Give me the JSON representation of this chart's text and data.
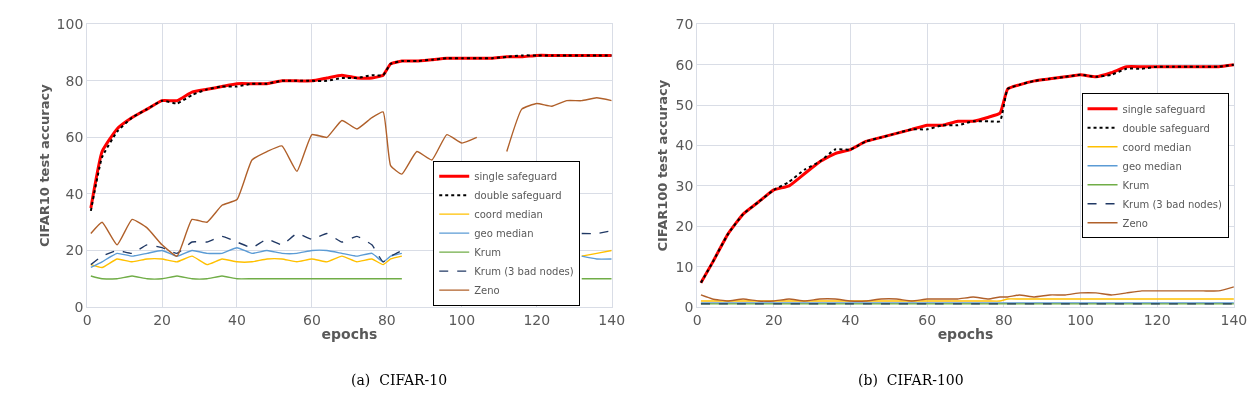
{
  "chart_data": [
    {
      "type": "line",
      "xlabel": "epochs",
      "ylabel": "CIFAR10 test accuracy",
      "annotations": [
        "(a)  CIFAR-10"
      ],
      "xlim": [
        0,
        140
      ],
      "ylim": [
        0,
        100
      ],
      "xticks": [
        0,
        20,
        40,
        60,
        80,
        100,
        120,
        140
      ],
      "yticks": [
        0,
        20,
        40,
        60,
        80,
        100
      ],
      "grid": true,
      "legend": "bottom right",
      "marker": "none",
      "x": [
        1,
        4,
        8,
        12,
        16,
        20,
        24,
        28,
        32,
        36,
        40,
        44,
        48,
        52,
        56,
        60,
        64,
        68,
        72,
        76,
        79,
        81,
        84,
        88,
        92,
        96,
        100,
        104,
        108,
        112,
        116,
        120,
        124,
        128,
        132,
        136,
        140
      ],
      "series": [
        {
          "name": "single safeguard",
          "color": "#ff0000",
          "line_style": "solid",
          "values": [
            35,
            55,
            63,
            67,
            70,
            73,
            73,
            76,
            77,
            78,
            79,
            79,
            79,
            80,
            80,
            80,
            81,
            82,
            81,
            81,
            82,
            86,
            87,
            87,
            87.5,
            88,
            88,
            88,
            88,
            88.5,
            88.5,
            89,
            89,
            89,
            89,
            89,
            89
          ]
        },
        {
          "name": "double safeguard",
          "color": "#000000",
          "line_style": "dotted",
          "values": [
            34,
            53,
            62,
            67,
            70,
            73,
            72,
            75,
            77,
            78,
            78,
            79,
            79,
            80,
            80,
            80,
            80,
            81,
            81,
            82,
            82,
            86,
            87,
            87,
            87.5,
            88,
            88,
            88,
            88,
            88.5,
            89,
            89,
            89,
            89,
            89,
            89,
            89
          ]
        },
        {
          "name": "coord median",
          "color": "#ffc000",
          "line_style": "solid",
          "values": [
            15,
            14,
            17,
            16,
            17,
            17,
            16,
            18,
            15,
            17,
            16,
            16,
            17,
            17,
            16,
            17,
            16,
            18,
            16,
            17,
            15,
            17,
            18,
            null,
            null,
            null,
            null,
            null,
            null,
            null,
            null,
            null,
            null,
            null,
            18,
            19,
            20
          ]
        },
        {
          "name": "geo median",
          "color": "#5b9bd5",
          "line_style": "solid",
          "values": [
            14,
            16,
            19,
            18,
            19,
            20,
            18,
            20,
            19,
            19,
            21,
            19,
            20,
            19,
            19,
            20,
            20,
            19,
            18,
            19,
            16,
            18,
            19,
            null,
            null,
            null,
            null,
            null,
            null,
            null,
            null,
            null,
            null,
            null,
            18,
            17,
            17
          ]
        },
        {
          "name": "Krum",
          "color": "#70ad47",
          "line_style": "solid",
          "values": [
            11,
            10,
            10,
            11,
            10,
            10,
            11,
            10,
            10,
            11,
            10,
            10,
            10,
            10,
            10,
            10,
            10,
            10,
            10,
            10,
            10,
            10,
            10,
            null,
            null,
            null,
            null,
            null,
            null,
            null,
            null,
            null,
            null,
            null,
            10,
            10,
            10
          ]
        },
        {
          "name": "Krum (3 bad nodes)",
          "color": "#203864",
          "line_style": "dashed",
          "values": [
            15,
            18,
            20,
            19,
            22,
            21,
            19,
            23,
            23,
            25,
            23,
            21,
            24,
            22,
            26,
            24,
            26,
            23,
            25,
            22,
            16,
            18,
            20,
            null,
            null,
            null,
            null,
            null,
            null,
            null,
            null,
            null,
            null,
            null,
            26,
            26,
            27
          ]
        },
        {
          "name": "Zeno",
          "color": "#b0602a",
          "line_style": "solid",
          "values": [
            26,
            30,
            22,
            31,
            28,
            22,
            18,
            31,
            30,
            36,
            38,
            52,
            55,
            57,
            48,
            61,
            60,
            66,
            63,
            67,
            69,
            50,
            47,
            55,
            52,
            61,
            58,
            60,
            null,
            55,
            70,
            72,
            71,
            73,
            73,
            74,
            73
          ]
        }
      ]
    },
    {
      "type": "line",
      "xlabel": "epochs",
      "ylabel": "CIFAR100 test accuracy",
      "annotations": [
        "(b)  CIFAR-100"
      ],
      "xlim": [
        0,
        140
      ],
      "ylim": [
        0,
        70
      ],
      "xticks": [
        0,
        20,
        40,
        60,
        80,
        100,
        120,
        140
      ],
      "yticks": [
        0,
        10,
        20,
        30,
        40,
        50,
        60,
        70
      ],
      "grid": true,
      "legend": "right",
      "marker": "none",
      "x": [
        1,
        4,
        8,
        12,
        16,
        20,
        24,
        28,
        32,
        36,
        40,
        44,
        48,
        52,
        56,
        60,
        64,
        68,
        72,
        76,
        79,
        81,
        84,
        88,
        92,
        96,
        100,
        104,
        108,
        112,
        116,
        120,
        124,
        128,
        132,
        136,
        140
      ],
      "series": [
        {
          "name": "single safeguard",
          "color": "#ff0000",
          "line_style": "solid",
          "values": [
            6,
            11,
            18,
            23,
            26,
            29,
            30,
            33,
            36,
            38,
            39,
            41,
            42,
            43,
            44,
            45,
            45,
            46,
            46,
            47,
            48,
            54,
            55,
            56,
            56.5,
            57,
            57.5,
            57,
            58,
            59.5,
            59.5,
            59.5,
            59.5,
            59.5,
            59.5,
            59.5,
            60
          ]
        },
        {
          "name": "double safeguard",
          "color": "#000000",
          "line_style": "dotted",
          "values": [
            6,
            11,
            18,
            23,
            26,
            29,
            31,
            34,
            36,
            39,
            39,
            41,
            42,
            43,
            44,
            44,
            45,
            45,
            46,
            46,
            46,
            54,
            55,
            56,
            56.5,
            57,
            57.5,
            57,
            57.5,
            59,
            59,
            59.5,
            59.5,
            59.5,
            59.5,
            59.5,
            60
          ]
        },
        {
          "name": "coord median",
          "color": "#ffc000",
          "line_style": "solid",
          "values": [
            1.5,
            1.5,
            1.5,
            1.5,
            1.5,
            1.5,
            1.5,
            1.5,
            1.5,
            1.5,
            1.5,
            1.5,
            1.5,
            1.5,
            1.5,
            1.5,
            1.5,
            1.5,
            1.5,
            1.5,
            1.5,
            2,
            2,
            2,
            2,
            2,
            2,
            2,
            2,
            2,
            2,
            2,
            2,
            2,
            2,
            2,
            2
          ]
        },
        {
          "name": "geo median",
          "color": "#5b9bd5",
          "line_style": "solid",
          "values": [
            1,
            1,
            1,
            1,
            1,
            1,
            1,
            1,
            1,
            1,
            1,
            1,
            1,
            1,
            1,
            1,
            1,
            1,
            1,
            1,
            1,
            1,
            1,
            1,
            1,
            1,
            1,
            1,
            1,
            1,
            1,
            1,
            1,
            1,
            1,
            1,
            1
          ]
        },
        {
          "name": "Krum",
          "color": "#70ad47",
          "line_style": "solid",
          "values": [
            0.8,
            0.8,
            0.8,
            0.8,
            0.8,
            0.8,
            0.8,
            0.8,
            0.8,
            0.8,
            0.8,
            0.8,
            0.8,
            0.8,
            0.8,
            0.8,
            0.8,
            0.8,
            0.8,
            0.8,
            0.8,
            0.8,
            0.8,
            0.8,
            0.8,
            0.8,
            0.8,
            0.8,
            0.8,
            0.8,
            0.8,
            0.8,
            0.8,
            0.8,
            0.8,
            0.8,
            0.8
          ]
        },
        {
          "name": "Krum (3 bad nodes)",
          "color": "#203864",
          "line_style": "dashed",
          "values": [
            0.8,
            0.8,
            0.8,
            0.8,
            0.8,
            0.8,
            0.8,
            0.8,
            0.8,
            0.8,
            0.8,
            0.8,
            0.8,
            0.8,
            0.8,
            0.8,
            0.8,
            0.8,
            0.8,
            0.8,
            0.8,
            0.8,
            0.8,
            0.8,
            0.8,
            0.8,
            0.8,
            0.8,
            0.8,
            0.8,
            0.8,
            0.8,
            0.8,
            0.8,
            0.8,
            0.8,
            0.8
          ]
        },
        {
          "name": "Zeno",
          "color": "#b0602a",
          "line_style": "solid",
          "values": [
            3,
            2,
            1.5,
            2,
            1.5,
            1.5,
            2,
            1.5,
            2,
            2,
            1.5,
            1.5,
            2,
            2,
            1.5,
            2,
            2,
            2,
            2.5,
            2,
            2.5,
            2.5,
            3,
            2.5,
            3,
            3,
            3.5,
            3.5,
            3,
            3.5,
            4,
            4,
            4,
            4,
            4,
            4,
            5
          ]
        }
      ]
    }
  ]
}
